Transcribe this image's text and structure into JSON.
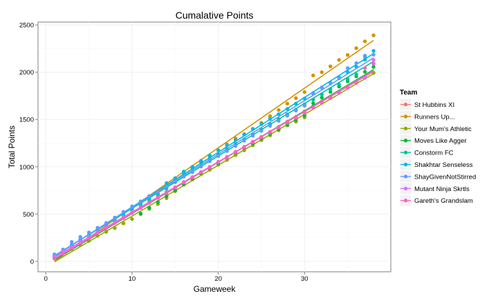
{
  "chart_data": {
    "type": "line",
    "title": "Cumalative Points",
    "xlabel": "Gameweek",
    "ylabel": "Total Points",
    "xlim": [
      -0.9,
      40.0
    ],
    "ylim": [
      -110,
      2530
    ],
    "xticks": [
      0,
      10,
      20,
      30
    ],
    "yticks": [
      0,
      500,
      1000,
      1500,
      2000,
      2500
    ],
    "grid": true,
    "legend": {
      "title": "Team",
      "placement": "right"
    },
    "x": [
      1,
      2,
      3,
      4,
      5,
      6,
      7,
      8,
      9,
      10,
      11,
      12,
      13,
      14,
      15,
      16,
      17,
      18,
      19,
      20,
      21,
      22,
      23,
      24,
      25,
      26,
      27,
      28,
      29,
      30,
      31,
      32,
      33,
      34,
      35,
      36,
      37,
      38
    ],
    "series": [
      {
        "name": "St Hubbins XI",
        "color": "#F8766D",
        "values": [
          46,
          102,
          158,
          188,
          240,
          302,
          352,
          418,
          468,
          524,
          578,
          636,
          690,
          736,
          784,
          836,
          890,
          940,
          996,
          1054,
          1106,
          1160,
          1212,
          1266,
          1318,
          1370,
          1424,
          1478,
          1530,
          1586,
          1638,
          1690,
          1742,
          1792,
          1846,
          1898,
          1950,
          1996
        ]
      },
      {
        "name": "Runners Up...",
        "color": "#D39200",
        "values": [
          58,
          118,
          170,
          226,
          276,
          330,
          390,
          448,
          506,
          564,
          622,
          686,
          742,
          804,
          862,
          924,
          986,
          1046,
          1110,
          1176,
          1238,
          1300,
          1346,
          1402,
          1464,
          1536,
          1600,
          1668,
          1726,
          1790,
          1966,
          2000,
          2062,
          2130,
          2182,
          2254,
          2326,
          2390
        ]
      },
      {
        "name": "Your Mum's Athletic",
        "color": "#93AA00",
        "values": [
          44,
          88,
          130,
          174,
          216,
          270,
          312,
          352,
          402,
          448,
          500,
          556,
          606,
          668,
          742,
          812,
          866,
          922,
          968,
          1022,
          1072,
          1124,
          1174,
          1228,
          1282,
          1332,
          1386,
          1438,
          1478,
          1522,
          1638,
          1676,
          1726,
          1786,
          1838,
          1888,
          1940,
          1992
        ]
      },
      {
        "name": "Moves Like Agger",
        "color": "#00BA38",
        "values": [
          60,
          108,
          156,
          208,
          252,
          302,
          358,
          416,
          464,
          516,
          506,
          566,
          628,
          690,
          752,
          814,
          876,
          936,
          990,
          1040,
          1096,
          1148,
          1198,
          1248,
          1298,
          1348,
          1398,
          1444,
          1494,
          1544,
          1672,
          1732,
          1792,
          1848,
          1904,
          1956,
          2004,
          2056
        ]
      },
      {
        "name": "Constorm FC",
        "color": "#00C19F",
        "values": [
          64,
          120,
          172,
          222,
          278,
          334,
          388,
          436,
          488,
          538,
          590,
          646,
          708,
          770,
          838,
          950,
          984,
          1036,
          1082,
          1136,
          1190,
          1244,
          1292,
          1346,
          1396,
          1452,
          1504,
          1554,
          1604,
          1660,
          1710,
          1766,
          1820,
          1870,
          1926,
          1976,
          2132,
          2088
        ]
      },
      {
        "name": "Shakhtar Senseless",
        "color": "#00B9E3",
        "values": [
          74,
          124,
          174,
          230,
          280,
          334,
          388,
          444,
          496,
          550,
          604,
          662,
          720,
          828,
          880,
          938,
          1000,
          1064,
          1120,
          1174,
          1228,
          1282,
          1340,
          1398,
          1452,
          1506,
          1556,
          1612,
          1668,
          1722,
          1780,
          1836,
          1890,
          1946,
          2002,
          2058,
          2166,
          2226
        ]
      },
      {
        "name": "ShayGivenNotStirred",
        "color": "#619CFF",
        "values": [
          68,
          126,
          206,
          260,
          306,
          356,
          406,
          464,
          524,
          582,
          634,
          692,
          736,
          788,
          846,
          896,
          944,
          1002,
          1058,
          1114,
          1166,
          1220,
          1276,
          1328,
          1380,
          1432,
          1486,
          1540,
          1594,
          1646,
          1772,
          1840,
          1880,
          1936,
          2044,
          2096,
          2176,
          2186
        ]
      },
      {
        "name": "Mutant Ninja Skrtls",
        "color": "#DB72FB",
        "values": [
          52,
          104,
          154,
          204,
          256,
          310,
          362,
          416,
          468,
          522,
          572,
          624,
          676,
          730,
          784,
          840,
          892,
          946,
          1000,
          1052,
          1104,
          1158,
          1210,
          1262,
          1314,
          1366,
          1418,
          1470,
          1522,
          1574,
          1626,
          1680,
          1732,
          1786,
          1840,
          1892,
          1946,
          2130
        ]
      },
      {
        "name": "Gareth's Grandslam",
        "color": "#FF61C3",
        "values": [
          30,
          84,
          140,
          196,
          246,
          300,
          350,
          406,
          458,
          512,
          566,
          620,
          672,
          726,
          780,
          834,
          888,
          942,
          994,
          1048,
          1100,
          1154,
          1206,
          1260,
          1312,
          1364,
          1416,
          1468,
          1520,
          1572,
          1624,
          1676,
          1728,
          1782,
          1836,
          1888,
          2044,
          2092
        ]
      }
    ]
  }
}
